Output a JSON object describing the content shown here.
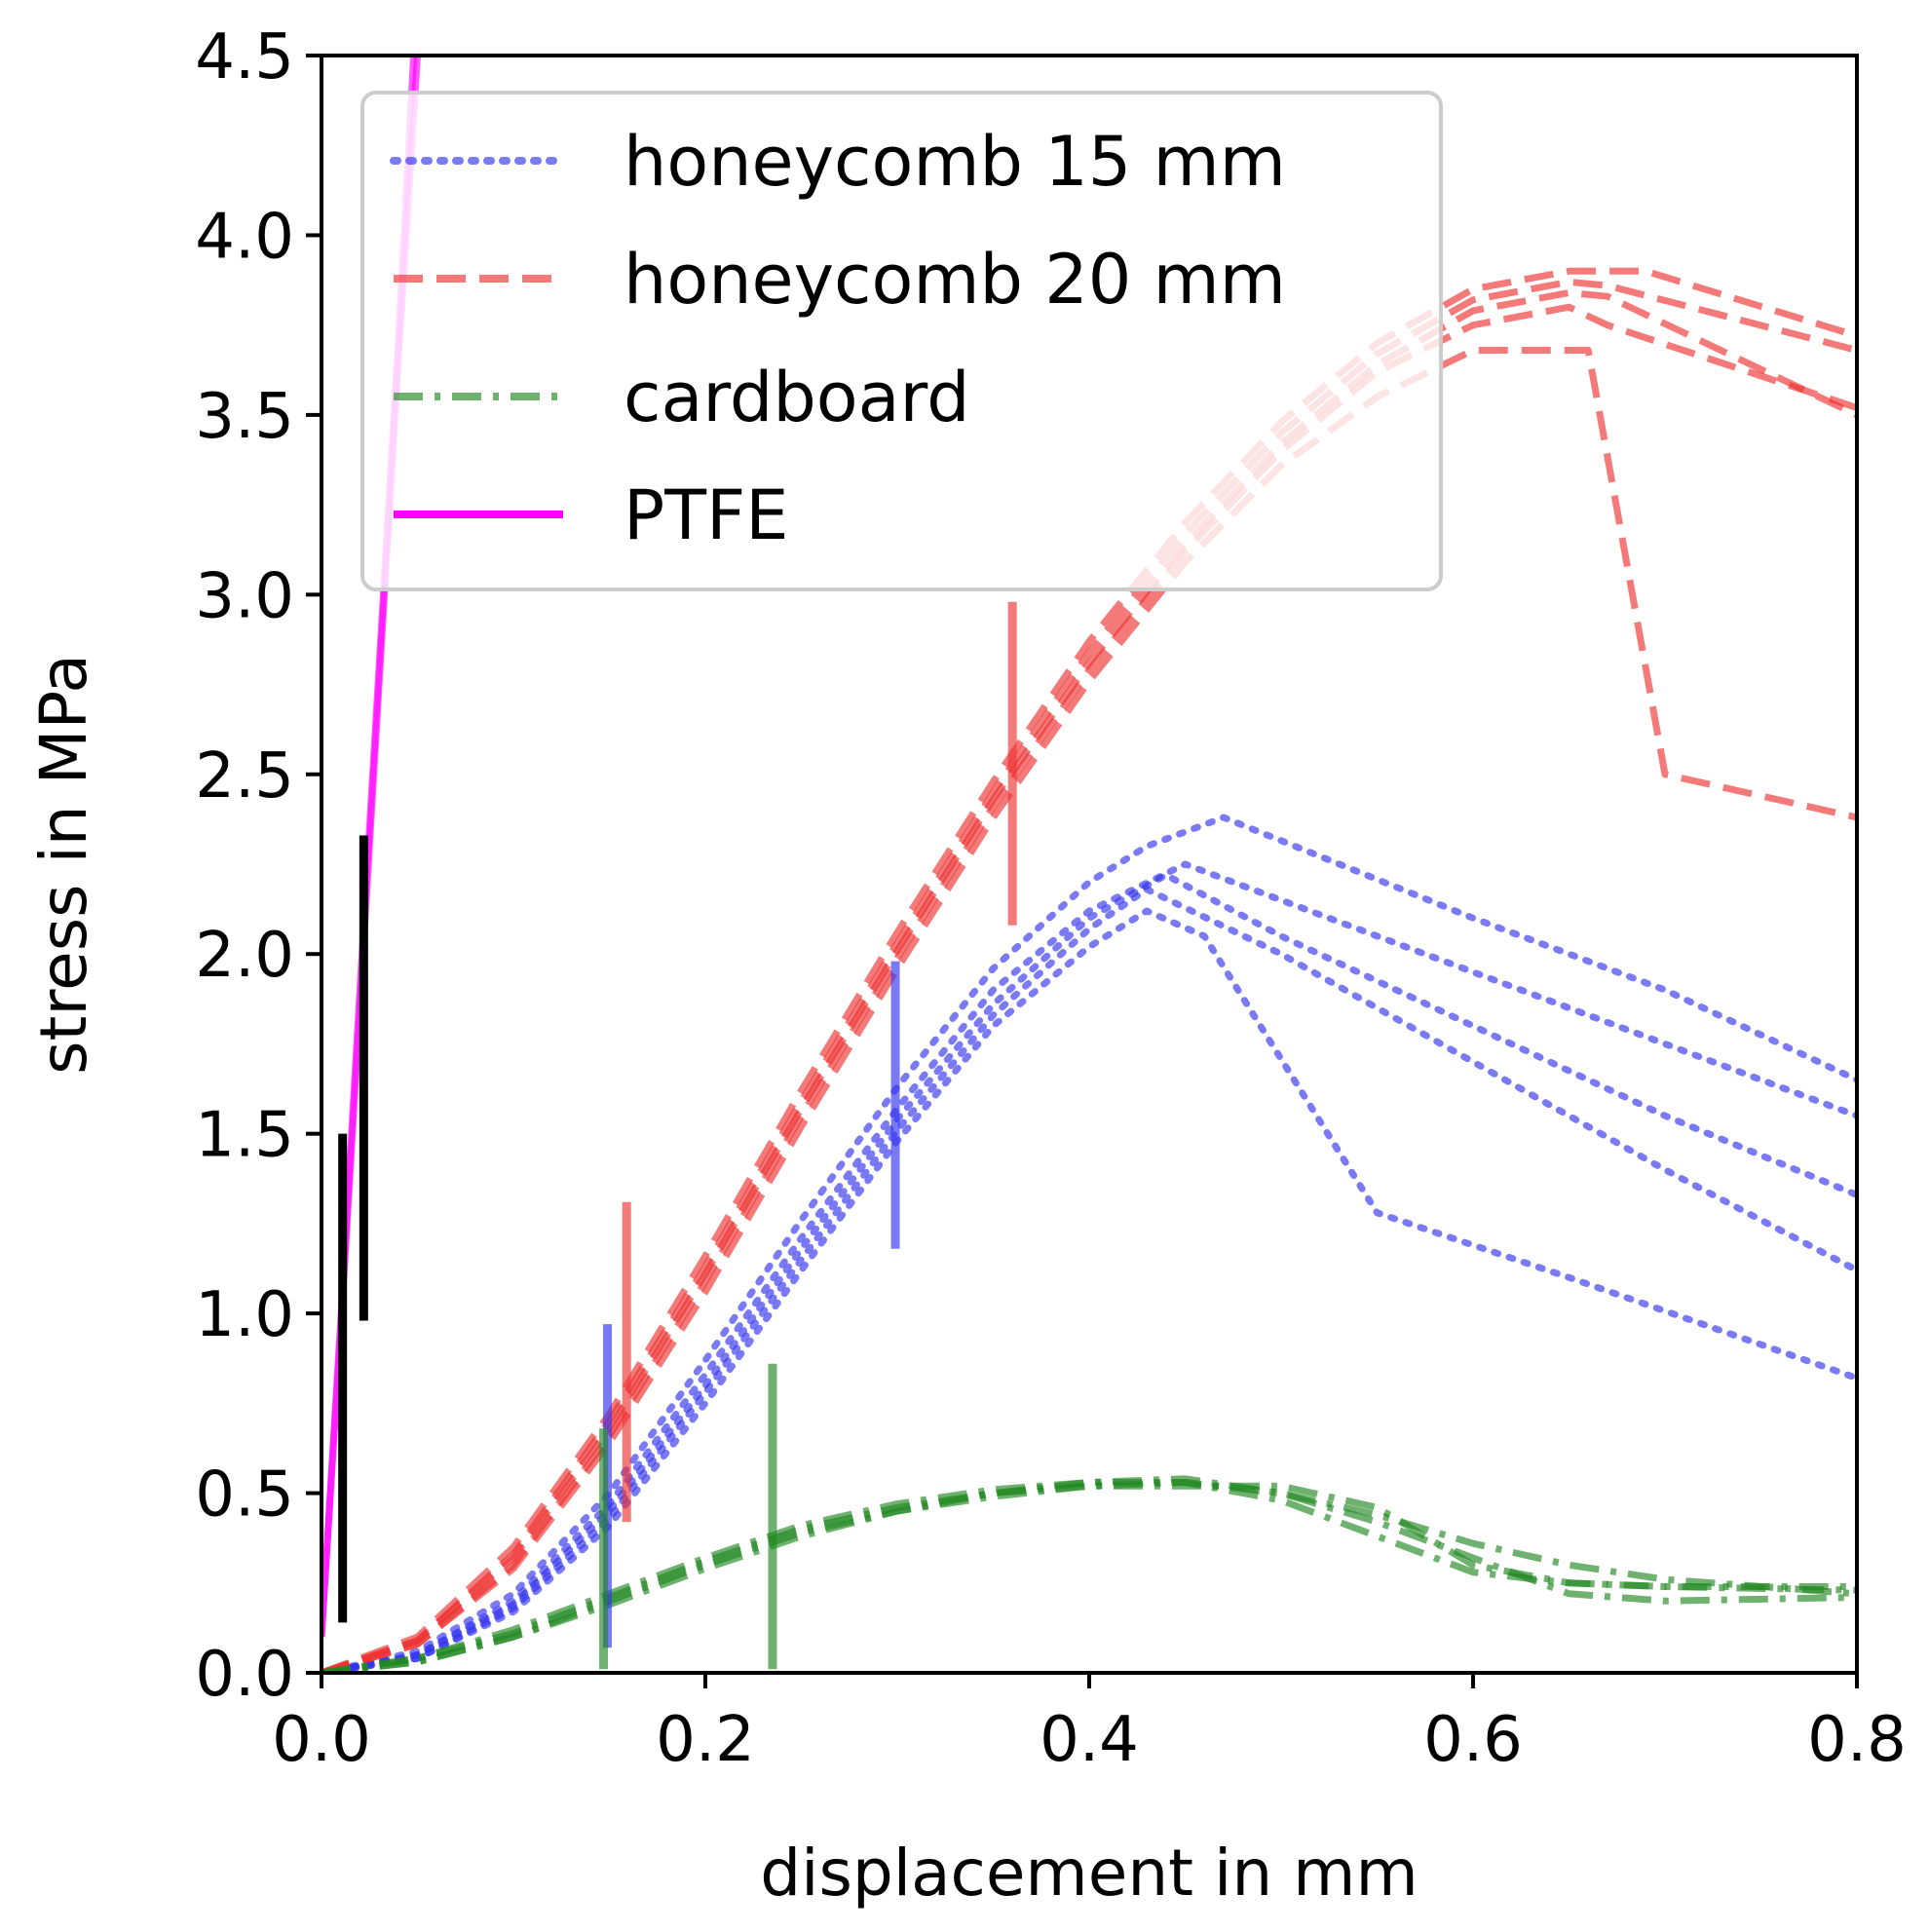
{
  "chart_data": {
    "type": "line",
    "title": "",
    "xlabel": "displacement in mm",
    "ylabel": "stress in MPa",
    "xlim": [
      0.0,
      0.8
    ],
    "ylim": [
      0.0,
      4.5
    ],
    "xticks": [
      "0.0",
      "0.2",
      "0.4",
      "0.6",
      "0.8"
    ],
    "yticks": [
      "0.0",
      "0.5",
      "1.0",
      "1.5",
      "2.0",
      "2.5",
      "3.0",
      "3.5",
      "4.0",
      "4.5"
    ],
    "grid": false,
    "legend_position": "top-left",
    "series": [
      {
        "name": "honeycomb 15 mm",
        "color": "#3333ee",
        "style": "dotted",
        "runs": [
          {
            "x": [
              0,
              0.05,
              0.1,
              0.15,
              0.2,
              0.25,
              0.3,
              0.35,
              0.4,
              0.43,
              0.47,
              0.6,
              0.7,
              0.8
            ],
            "y": [
              0,
              0.06,
              0.22,
              0.5,
              0.87,
              1.26,
              1.63,
              1.96,
              2.2,
              2.3,
              2.38,
              2.1,
              1.9,
              1.65
            ]
          },
          {
            "x": [
              0,
              0.05,
              0.1,
              0.15,
              0.2,
              0.25,
              0.3,
              0.35,
              0.4,
              0.45,
              0.5,
              0.6,
              0.7,
              0.8
            ],
            "y": [
              0,
              0.05,
              0.2,
              0.47,
              0.83,
              1.21,
              1.57,
              1.9,
              2.12,
              2.25,
              2.15,
              1.95,
              1.75,
              1.55
            ]
          },
          {
            "x": [
              0,
              0.05,
              0.1,
              0.15,
              0.2,
              0.25,
              0.3,
              0.35,
              0.4,
              0.44,
              0.5,
              0.6,
              0.7,
              0.8
            ],
            "y": [
              0,
              0.05,
              0.19,
              0.45,
              0.8,
              1.18,
              1.54,
              1.86,
              2.1,
              2.22,
              2.05,
              1.8,
              1.55,
              1.33
            ]
          },
          {
            "x": [
              0,
              0.05,
              0.1,
              0.15,
              0.2,
              0.25,
              0.3,
              0.35,
              0.4,
              0.43,
              0.5,
              0.6,
              0.7,
              0.8
            ],
            "y": [
              0,
              0.04,
              0.18,
              0.43,
              0.78,
              1.15,
              1.51,
              1.83,
              2.07,
              2.18,
              2.0,
              1.7,
              1.4,
              1.12
            ]
          },
          {
            "x": [
              0,
              0.05,
              0.1,
              0.15,
              0.2,
              0.25,
              0.3,
              0.35,
              0.4,
              0.43,
              0.46,
              0.55,
              0.65,
              0.8
            ],
            "y": [
              0,
              0.04,
              0.17,
              0.41,
              0.75,
              1.12,
              1.48,
              1.8,
              2.02,
              2.12,
              2.05,
              1.28,
              1.1,
              0.82
            ]
          }
        ]
      },
      {
        "name": "honeycomb 20 mm",
        "color": "#ee3333",
        "style": "dashed",
        "runs": [
          {
            "x": [
              0,
              0.05,
              0.1,
              0.15,
              0.2,
              0.25,
              0.3,
              0.35,
              0.4,
              0.45,
              0.5,
              0.55,
              0.6,
              0.65,
              0.69,
              0.8
            ],
            "y": [
              0,
              0.1,
              0.35,
              0.72,
              1.16,
              1.62,
              2.06,
              2.48,
              2.87,
              3.2,
              3.48,
              3.7,
              3.85,
              3.9,
              3.9,
              3.72
            ]
          },
          {
            "x": [
              0,
              0.05,
              0.1,
              0.15,
              0.2,
              0.25,
              0.3,
              0.35,
              0.4,
              0.45,
              0.5,
              0.55,
              0.6,
              0.65,
              0.67,
              0.8
            ],
            "y": [
              0,
              0.09,
              0.33,
              0.7,
              1.13,
              1.59,
              2.03,
              2.45,
              2.84,
              3.17,
              3.45,
              3.67,
              3.82,
              3.87,
              3.86,
              3.68
            ]
          },
          {
            "x": [
              0,
              0.05,
              0.1,
              0.15,
              0.2,
              0.25,
              0.3,
              0.35,
              0.4,
              0.45,
              0.5,
              0.55,
              0.6,
              0.65,
              0.67,
              0.8
            ],
            "y": [
              0,
              0.09,
              0.32,
              0.68,
              1.11,
              1.57,
              2.01,
              2.43,
              2.81,
              3.14,
              3.42,
              3.64,
              3.79,
              3.84,
              3.83,
              3.5
            ]
          },
          {
            "x": [
              0,
              0.05,
              0.1,
              0.15,
              0.2,
              0.25,
              0.3,
              0.35,
              0.4,
              0.45,
              0.5,
              0.55,
              0.6,
              0.65,
              0.67,
              0.8
            ],
            "y": [
              0,
              0.08,
              0.3,
              0.66,
              1.09,
              1.55,
              1.99,
              2.41,
              2.79,
              3.12,
              3.4,
              3.62,
              3.75,
              3.8,
              3.75,
              3.52
            ]
          },
          {
            "x": [
              0,
              0.05,
              0.1,
              0.15,
              0.2,
              0.25,
              0.3,
              0.35,
              0.4,
              0.45,
              0.5,
              0.55,
              0.6,
              0.66,
              0.7,
              0.8
            ],
            "y": [
              0,
              0.08,
              0.29,
              0.64,
              1.06,
              1.52,
              1.96,
              2.38,
              2.76,
              3.09,
              3.36,
              3.55,
              3.68,
              3.68,
              2.5,
              2.38
            ]
          }
        ]
      },
      {
        "name": "cardboard",
        "color": "#228822",
        "style": "dashdot",
        "runs": [
          {
            "x": [
              0,
              0.05,
              0.1,
              0.15,
              0.2,
              0.25,
              0.3,
              0.35,
              0.4,
              0.45,
              0.5,
              0.55,
              0.6,
              0.65,
              0.7,
              0.8
            ],
            "y": [
              0,
              0.04,
              0.12,
              0.22,
              0.32,
              0.41,
              0.47,
              0.51,
              0.53,
              0.54,
              0.5,
              0.44,
              0.36,
              0.3,
              0.26,
              0.22
            ]
          },
          {
            "x": [
              0,
              0.05,
              0.1,
              0.15,
              0.2,
              0.25,
              0.3,
              0.35,
              0.4,
              0.45,
              0.5,
              0.55,
              0.6,
              0.65,
              0.7,
              0.8
            ],
            "y": [
              0,
              0.04,
              0.11,
              0.21,
              0.31,
              0.4,
              0.46,
              0.5,
              0.52,
              0.52,
              0.52,
              0.46,
              0.3,
              0.25,
              0.24,
              0.23
            ]
          },
          {
            "x": [
              0,
              0.05,
              0.1,
              0.15,
              0.2,
              0.25,
              0.3,
              0.35,
              0.4,
              0.45,
              0.5,
              0.55,
              0.6,
              0.65,
              0.7,
              0.8
            ],
            "y": [
              0,
              0.03,
              0.1,
              0.2,
              0.3,
              0.39,
              0.45,
              0.5,
              0.53,
              0.53,
              0.48,
              0.38,
              0.28,
              0.25,
              0.24,
              0.24
            ]
          },
          {
            "x": [
              0,
              0.05,
              0.1,
              0.15,
              0.2,
              0.25,
              0.3,
              0.35,
              0.4,
              0.45,
              0.5,
              0.55,
              0.6,
              0.65,
              0.7,
              0.8
            ],
            "y": [
              0,
              0.03,
              0.1,
              0.19,
              0.29,
              0.38,
              0.45,
              0.49,
              0.52,
              0.53,
              0.5,
              0.42,
              0.32,
              0.22,
              0.2,
              0.21
            ]
          }
        ]
      },
      {
        "name": "PTFE",
        "color": "#ff00ff",
        "style": "solid",
        "runs": [
          {
            "x": [
              0,
              0.01,
              0.02,
              0.03,
              0.04,
              0.05
            ],
            "y": [
              0.1,
              0.95,
              1.85,
              2.75,
              3.65,
              4.5
            ]
          },
          {
            "x": [
              0,
              0.01,
              0.02,
              0.03,
              0.04,
              0.048
            ],
            "y": [
              0.1,
              0.98,
              1.9,
              2.8,
              3.7,
              4.5
            ]
          }
        ]
      }
    ],
    "markers": [
      {
        "color": "#000000",
        "x": 0.011,
        "y_range": [
          0.14,
          1.5
        ]
      },
      {
        "color": "#000000",
        "x": 0.022,
        "y_range": [
          0.98,
          2.33
        ]
      },
      {
        "color": "#3333ee",
        "x": 0.149,
        "y_range": [
          0.07,
          0.97
        ]
      },
      {
        "color": "#3333ee",
        "x": 0.299,
        "y_range": [
          1.18,
          1.98
        ]
      },
      {
        "color": "#ee3333",
        "x": 0.159,
        "y_range": [
          0.42,
          1.31
        ]
      },
      {
        "color": "#ee3333",
        "x": 0.36,
        "y_range": [
          2.08,
          2.98
        ]
      },
      {
        "color": "#228822",
        "x": 0.147,
        "y_range": [
          0.01,
          0.68
        ]
      },
      {
        "color": "#228822",
        "x": 0.235,
        "y_range": [
          0.01,
          0.86
        ]
      }
    ]
  }
}
